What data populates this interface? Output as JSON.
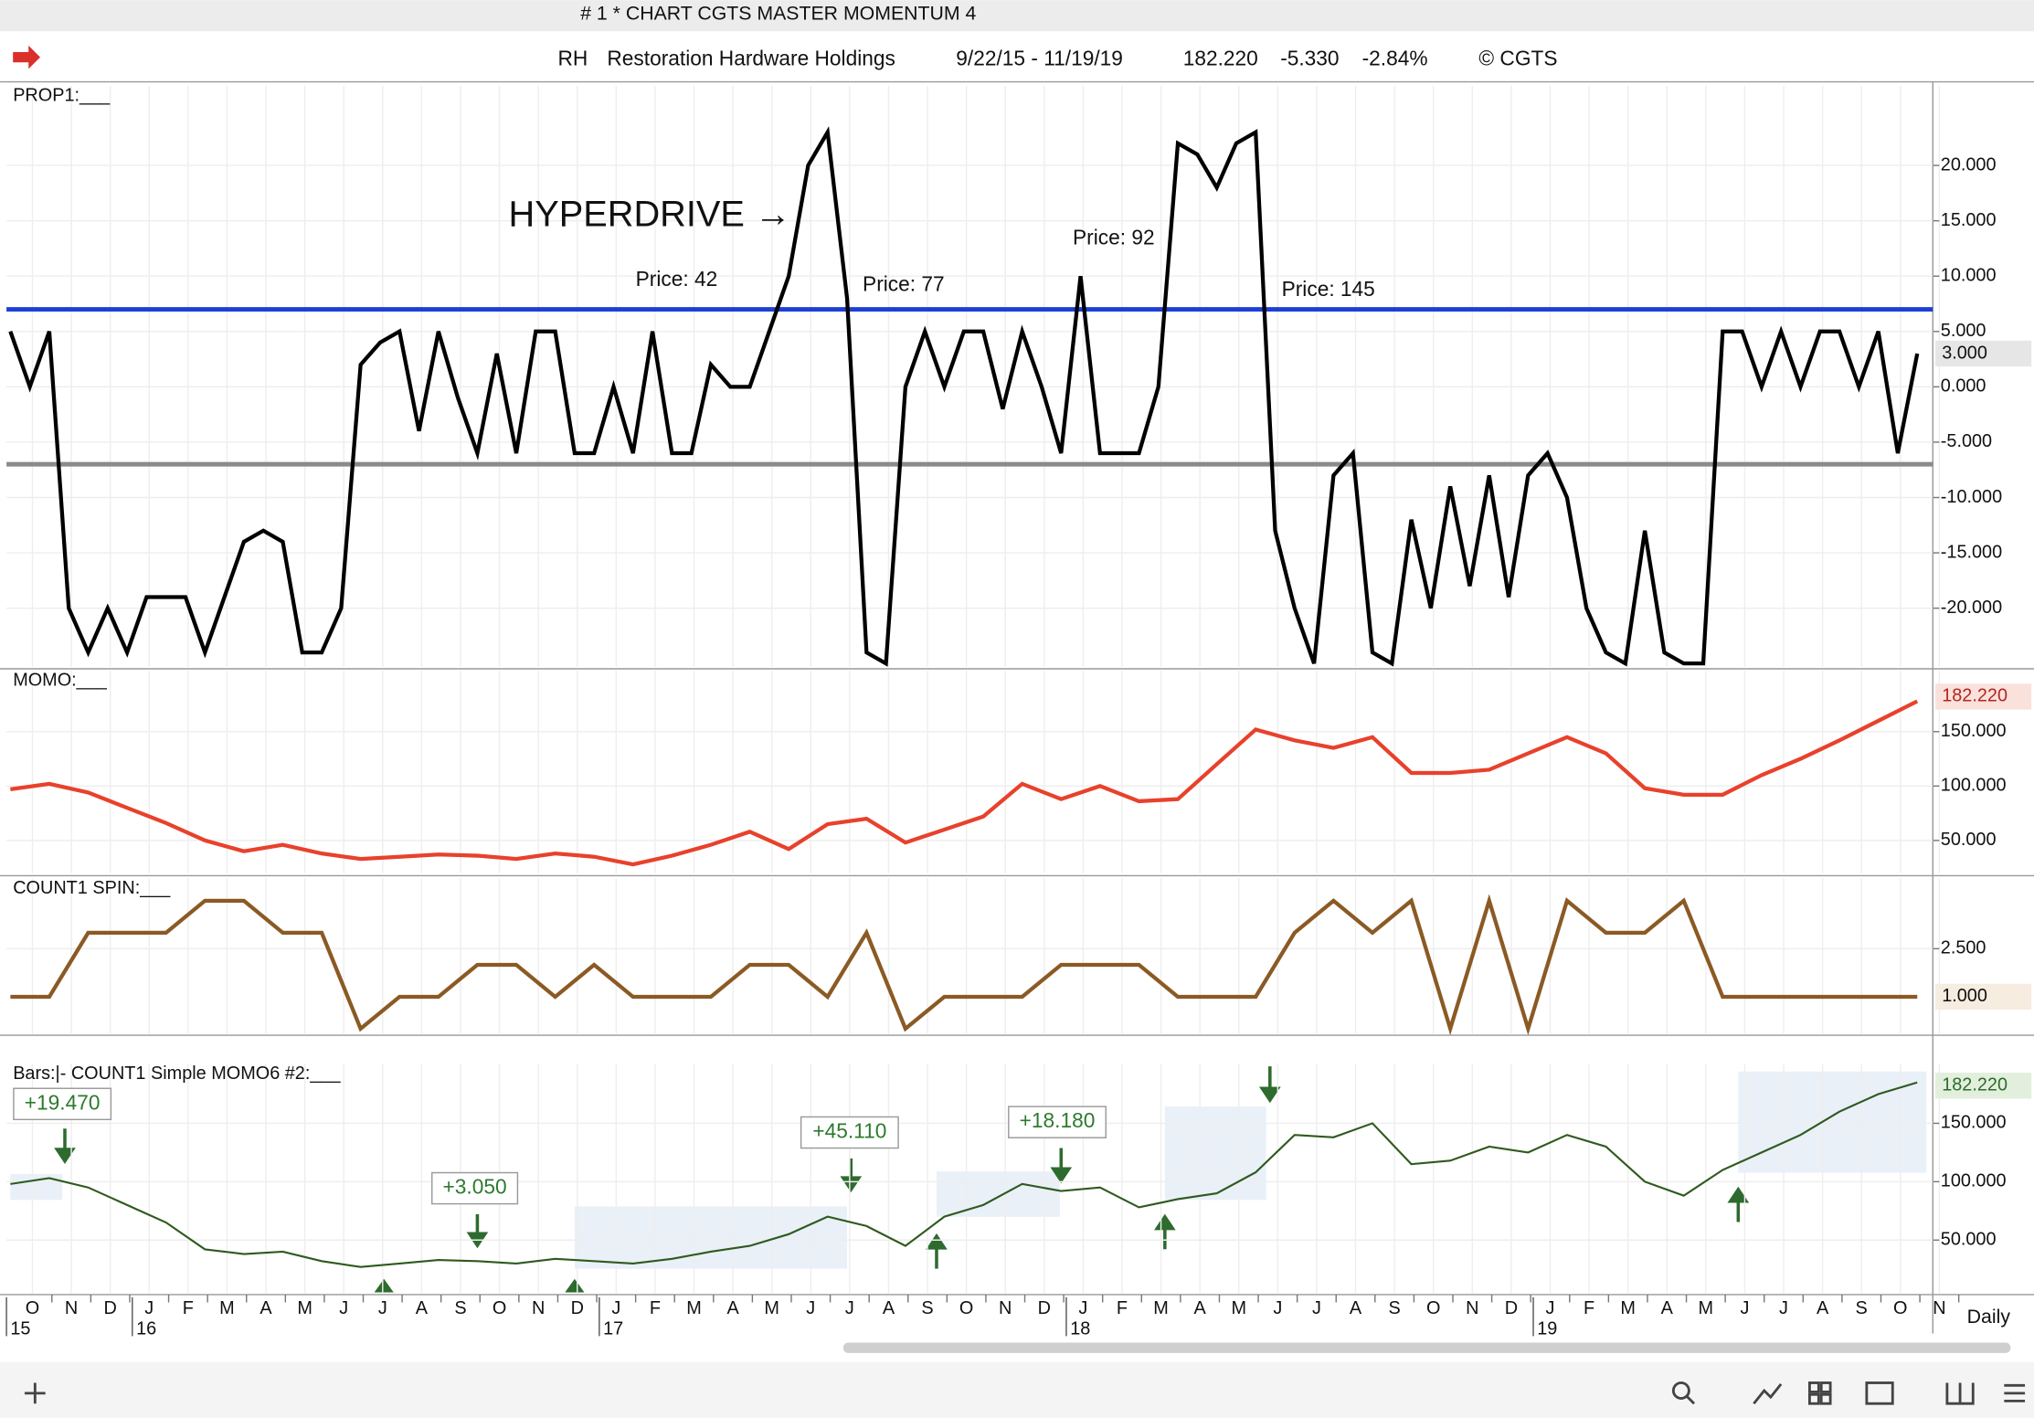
{
  "window": {
    "title": "# 1 * CHART CGTS MASTER MOMENTUM 4",
    "symbol": "RH",
    "company": "Restoration Hardware Holdings",
    "date_range": "9/22/15 - 11/19/19",
    "last": "182.220",
    "change": "-5.330",
    "change_pct": "-2.84%",
    "copyright": "© CGTS",
    "period": "Daily"
  },
  "x_axis": {
    "categories": [
      "O",
      "N",
      "D",
      "J",
      "F",
      "M",
      "A",
      "M",
      "J",
      "J",
      "A",
      "S",
      "O",
      "N",
      "D",
      "J",
      "F",
      "M",
      "A",
      "M",
      "J",
      "J",
      "A",
      "S",
      "O",
      "N",
      "D",
      "J",
      "F",
      "M",
      "A",
      "M",
      "J",
      "J",
      "A",
      "S",
      "O",
      "N",
      "D",
      "J",
      "F",
      "M",
      "A",
      "M",
      "J",
      "J",
      "A",
      "S",
      "O",
      "N"
    ],
    "years": [
      "15",
      null,
      null,
      "16",
      null,
      null,
      null,
      null,
      null,
      null,
      null,
      null,
      null,
      null,
      null,
      "17",
      null,
      null,
      null,
      null,
      null,
      null,
      null,
      null,
      null,
      null,
      null,
      "18",
      null,
      null,
      null,
      null,
      null,
      null,
      null,
      null,
      null,
      null,
      null,
      "19",
      null,
      null,
      null,
      null,
      null,
      null,
      null,
      null,
      null,
      null
    ]
  },
  "chart_data": [
    {
      "type": "line",
      "title": "PROP1:___",
      "ylim": [
        -25.3,
        27.2
      ],
      "yticks": [
        {
          "value": 20,
          "label": "20.000"
        },
        {
          "value": 15,
          "label": "15.000"
        },
        {
          "value": 10,
          "label": "10.000"
        },
        {
          "value": 5,
          "label": "5.000"
        },
        {
          "value": 0,
          "label": "0.000"
        },
        {
          "value": -5,
          "label": "-5.000"
        },
        {
          "value": -10,
          "label": "-10.000"
        },
        {
          "value": -15,
          "label": "-15.000"
        },
        {
          "value": -20,
          "label": "-20.000"
        }
      ],
      "last_value": {
        "value": 3,
        "label": "3.000"
      },
      "hlines": [
        {
          "value": 7,
          "color": "#1d3fd6"
        },
        {
          "value": -7,
          "color": "#8a8a8a"
        }
      ],
      "annotations": [
        "HYPERDRIVE →",
        "Price: 42",
        "Price: 77",
        "Price: 92",
        "Price: 145"
      ],
      "series": [
        {
          "color": "#000000",
          "values": [
            5,
            0,
            5,
            -20,
            -24,
            -20,
            -24,
            -19,
            -19,
            -19,
            -24,
            -19,
            -14,
            -13,
            -14,
            -24,
            -24,
            -20,
            2,
            4,
            5,
            -4,
            5,
            -1,
            -6,
            3,
            -6,
            5,
            5,
            -6,
            -6,
            0,
            -6,
            5,
            -6,
            -6,
            2,
            0,
            0,
            5,
            10,
            20,
            23,
            8,
            -24,
            -25,
            0,
            5,
            0,
            5,
            5,
            -2,
            5,
            0,
            -6,
            10,
            -6,
            -6,
            -6,
            0,
            22,
            21,
            18,
            22,
            23,
            -13,
            -20,
            -25,
            -8,
            -6,
            -24,
            -25,
            -12,
            -20,
            -9,
            -18,
            -8,
            -19,
            -8,
            -6,
            -10,
            -20,
            -24,
            -25,
            -13,
            -24,
            -25,
            -25,
            5,
            5,
            0,
            5,
            0,
            5,
            5,
            0,
            5,
            -6,
            3
          ]
        }
      ]
    },
    {
      "type": "line",
      "title": "MOMO:___",
      "ylim": [
        20,
        206
      ],
      "yticks": [
        {
          "value": 150,
          "label": "150.000"
        },
        {
          "value": 100,
          "label": "100.000"
        },
        {
          "value": 50,
          "label": "50.000"
        }
      ],
      "last_value": {
        "value": 182.22,
        "label": "182.220"
      },
      "series": [
        {
          "color": "#e8412c",
          "values": [
            97,
            102,
            94,
            80,
            66,
            50,
            40,
            46,
            38,
            33,
            35,
            37,
            36,
            33,
            38,
            35,
            28,
            36,
            46,
            58,
            42,
            65,
            70,
            48,
            60,
            72,
            102,
            88,
            100,
            86,
            88,
            120,
            152,
            142,
            135,
            145,
            112,
            112,
            115,
            130,
            145,
            130,
            98,
            92,
            92,
            110,
            125,
            142,
            160,
            178
          ]
        }
      ]
    },
    {
      "type": "line",
      "title": "COUNT1 SPIN:___",
      "ylim": [
        -0.16,
        4.7
      ],
      "yticks": [
        {
          "value": 2.5,
          "label": "2.500"
        }
      ],
      "last_value": {
        "value": 1,
        "label": "1.000"
      },
      "series": [
        {
          "color": "#8b5a24",
          "values": [
            1,
            1,
            3,
            3,
            3,
            4,
            4,
            3,
            3,
            0,
            1,
            1,
            2,
            2,
            1,
            2,
            1,
            1,
            1,
            2,
            2,
            1,
            3,
            0,
            1,
            1,
            1,
            2,
            2,
            2,
            1,
            1,
            1,
            3,
            4,
            3,
            4,
            0,
            4,
            0,
            4,
            3,
            3,
            4,
            1,
            1,
            1,
            1,
            1,
            1
          ]
        }
      ]
    },
    {
      "type": "line",
      "title": "Bars:|-   COUNT1 Simple MOMO6 #2:___",
      "ylim": [
        4.4,
        201
      ],
      "yticks": [
        {
          "value": 150,
          "label": "150.000"
        },
        {
          "value": 100,
          "label": "100.000"
        },
        {
          "value": 50,
          "label": "50.000"
        }
      ],
      "last_value": {
        "value": 182.22,
        "label": "182.220"
      },
      "annotations": [
        "+19.470",
        "+3.050",
        "+45.110",
        "+18.180"
      ],
      "series": [
        {
          "color": "#2f5a1e",
          "values": [
            98,
            103,
            95,
            80,
            65,
            42,
            38,
            40,
            32,
            27,
            30,
            33,
            32,
            30,
            34,
            32,
            30,
            34,
            40,
            45,
            55,
            70,
            62,
            45,
            70,
            80,
            98,
            92,
            95,
            78,
            85,
            90,
            108,
            140,
            138,
            150,
            115,
            118,
            130,
            125,
            140,
            130,
            100,
            88,
            110,
            125,
            140,
            160,
            175,
            185
          ]
        }
      ]
    }
  ]
}
